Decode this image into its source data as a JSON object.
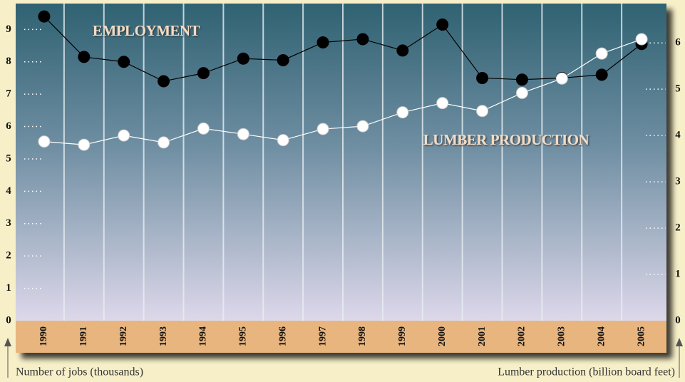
{
  "chart_data": {
    "type": "line",
    "categories": [
      "1990",
      "1991",
      "1992",
      "1993",
      "1994",
      "1995",
      "1996",
      "1997",
      "1998",
      "1999",
      "2000",
      "2001",
      "2002",
      "2003",
      "2004",
      "2005"
    ],
    "series": [
      {
        "name": "EMPLOYMENT",
        "color": "#000000",
        "axis": "y",
        "values": [
          9.4,
          8.15,
          8.0,
          7.4,
          7.65,
          8.1,
          8.05,
          8.6,
          8.7,
          8.35,
          9.15,
          7.5,
          7.45,
          7.5,
          7.6,
          8.55
        ]
      },
      {
        "name": "LUMBER PRODUCTION",
        "color": "#ffffff",
        "axis": "y2",
        "values": [
          3.87,
          3.8,
          4.0,
          3.85,
          4.15,
          4.03,
          3.9,
          4.14,
          4.2,
          4.5,
          4.7,
          4.53,
          4.92,
          5.23,
          5.77,
          6.08
        ]
      }
    ],
    "ylabel": "Number of jobs (thousands)",
    "y2label": "Lumber production (billion board feet)",
    "ylim": [
      0,
      9.8
    ],
    "yticks": [
      0,
      1,
      2,
      3,
      4,
      5,
      6,
      7,
      8,
      9
    ],
    "y2lim": [
      0,
      6.85
    ],
    "y2ticks": [
      0,
      1,
      2,
      3,
      4,
      5,
      6
    ]
  }
}
